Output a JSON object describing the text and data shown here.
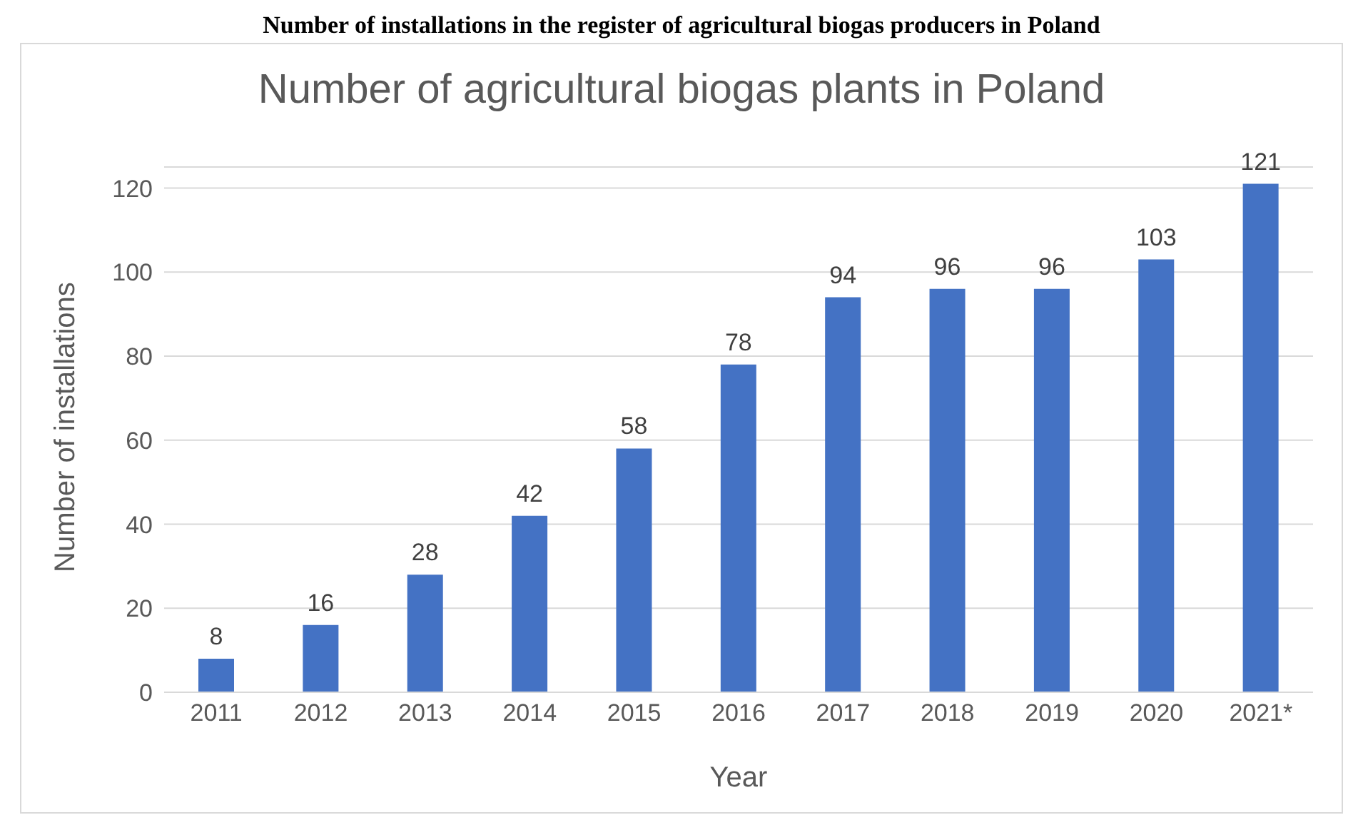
{
  "chart_data": {
    "type": "bar",
    "title": "Number of agricultural biogas plants in Poland",
    "xlabel": "Year",
    "ylabel": "Number of installations",
    "annotations": [
      "Number of installations in the register of agricultural biogas producers in Poland"
    ],
    "categories": [
      "2011",
      "2012",
      "2013",
      "2014",
      "2015",
      "2016",
      "2017",
      "2018",
      "2019",
      "2020",
      "2021*"
    ],
    "values": [
      8,
      16,
      28,
      42,
      58,
      78,
      94,
      96,
      96,
      103,
      121
    ],
    "color": "#4472c4",
    "ylim": [
      0,
      125
    ],
    "yticks": [
      0,
      20,
      40,
      60,
      80,
      100,
      120
    ],
    "grid": "y",
    "data_labels": true,
    "legend": false
  }
}
